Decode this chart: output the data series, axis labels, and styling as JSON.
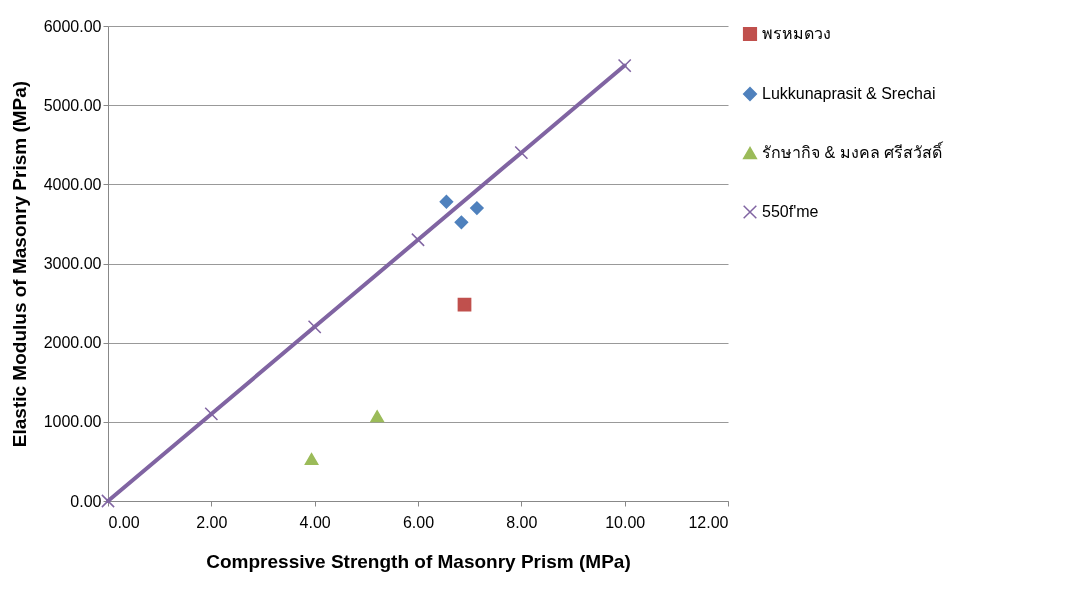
{
  "chart_data": {
    "type": "scatter",
    "xlabel": "Compressive Strength of Masonry Prism (MPa)",
    "ylabel": "Elastic Modulus of Masonry Prism (MPa)",
    "xlim": [
      0,
      12
    ],
    "xticks": [
      {
        "value": 0,
        "label": "0.00"
      },
      {
        "value": 2,
        "label": "2.00"
      },
      {
        "value": 4,
        "label": "4.00"
      },
      {
        "value": 6,
        "label": "6.00"
      },
      {
        "value": 8,
        "label": "8.00"
      },
      {
        "value": 10,
        "label": "10.00"
      },
      {
        "value": 12,
        "label": "12.00"
      }
    ],
    "ylim": [
      0,
      6000
    ],
    "yticks": [
      {
        "value": 0,
        "label": "0.00"
      },
      {
        "value": 1000,
        "label": "1000.00"
      },
      {
        "value": 2000,
        "label": "2000.00"
      },
      {
        "value": 3000,
        "label": "3000.00"
      },
      {
        "value": 4000,
        "label": "4000.00"
      },
      {
        "value": 5000,
        "label": "5000.00"
      },
      {
        "value": 6000,
        "label": "6000.00"
      }
    ],
    "grid": "y",
    "legend": "right",
    "series": [
      {
        "name": "พรหมดวง",
        "color": "#c0504d",
        "marker": "square",
        "x": [
          6.9
        ],
        "values": [
          2480
        ]
      },
      {
        "name": "Lukkunaprasit & Srechai",
        "color": "#4f81bd",
        "marker": "diamond",
        "x": [
          6.55,
          6.84,
          7.14
        ],
        "values": [
          3780,
          3520,
          3700
        ]
      },
      {
        "name": "รักษากิจ & มงคล ศรีสวัสดิ์",
        "color": "#9bbb59",
        "marker": "triangle",
        "x": [
          3.94,
          5.21
        ],
        "values": [
          530,
          1070
        ]
      },
      {
        "name": "550f'me",
        "type": "line",
        "color": "#8064a2",
        "marker": "cross",
        "x": [
          0,
          2,
          4,
          6,
          8,
          10
        ],
        "values": [
          0,
          1100,
          2200,
          3300,
          4400,
          5500
        ]
      }
    ]
  }
}
